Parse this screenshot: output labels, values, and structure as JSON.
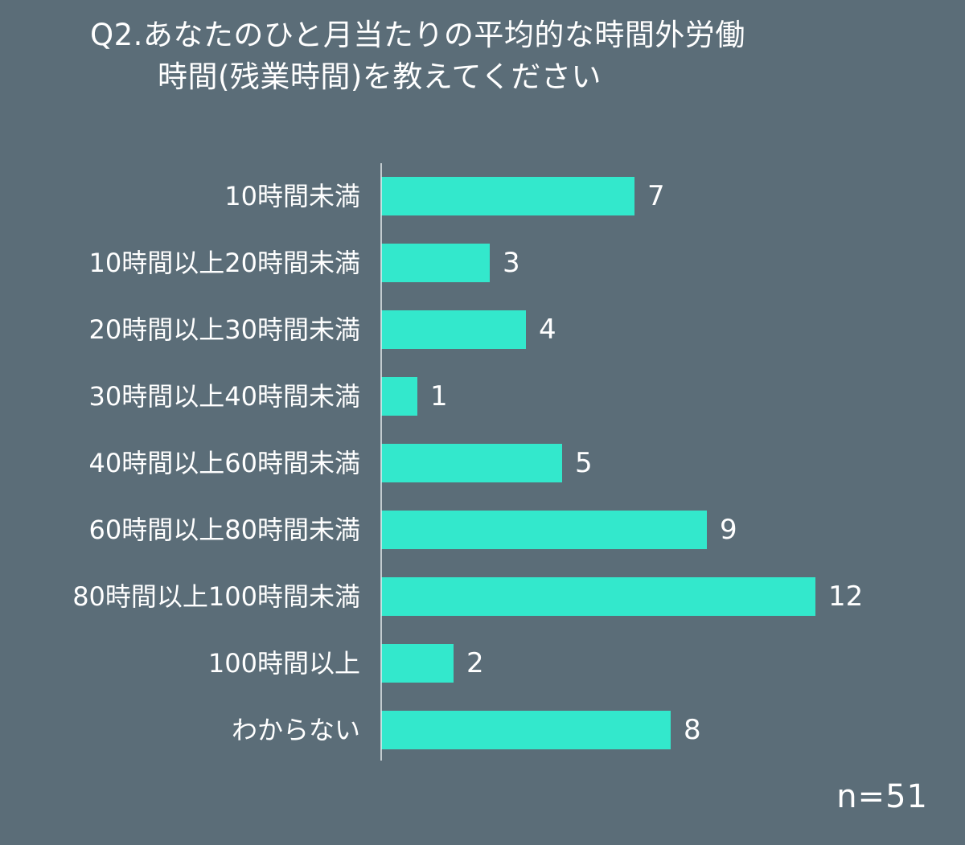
{
  "title_line1": "Q2.あなたのひと月当たりの平均的な時間外労働",
  "title_line2": "時間(残業時間)を教えてください",
  "sample_size": "n=51",
  "colors": {
    "background": "#5b6d78",
    "bar": "#33e8cc",
    "axis": "#e8ecee",
    "text": "#ffffff"
  },
  "chart_data": {
    "type": "bar",
    "orientation": "horizontal",
    "title": "Q2.あなたのひと月当たりの平均的な時間外労働時間(残業時間)を教えてください",
    "categories": [
      "10時間未満",
      "10時間以上20時間未満",
      "20時間以上30時間未満",
      "30時間以上40時間未満",
      "40時間以上60時間未満",
      "60時間以上80時間未満",
      "80時間以上100時間未満",
      "100時間以上",
      "わからない"
    ],
    "values": [
      7,
      3,
      4,
      1,
      5,
      9,
      12,
      2,
      8
    ],
    "xlim": [
      0,
      12
    ],
    "grid": false,
    "legend": "none",
    "data_labels": true
  }
}
